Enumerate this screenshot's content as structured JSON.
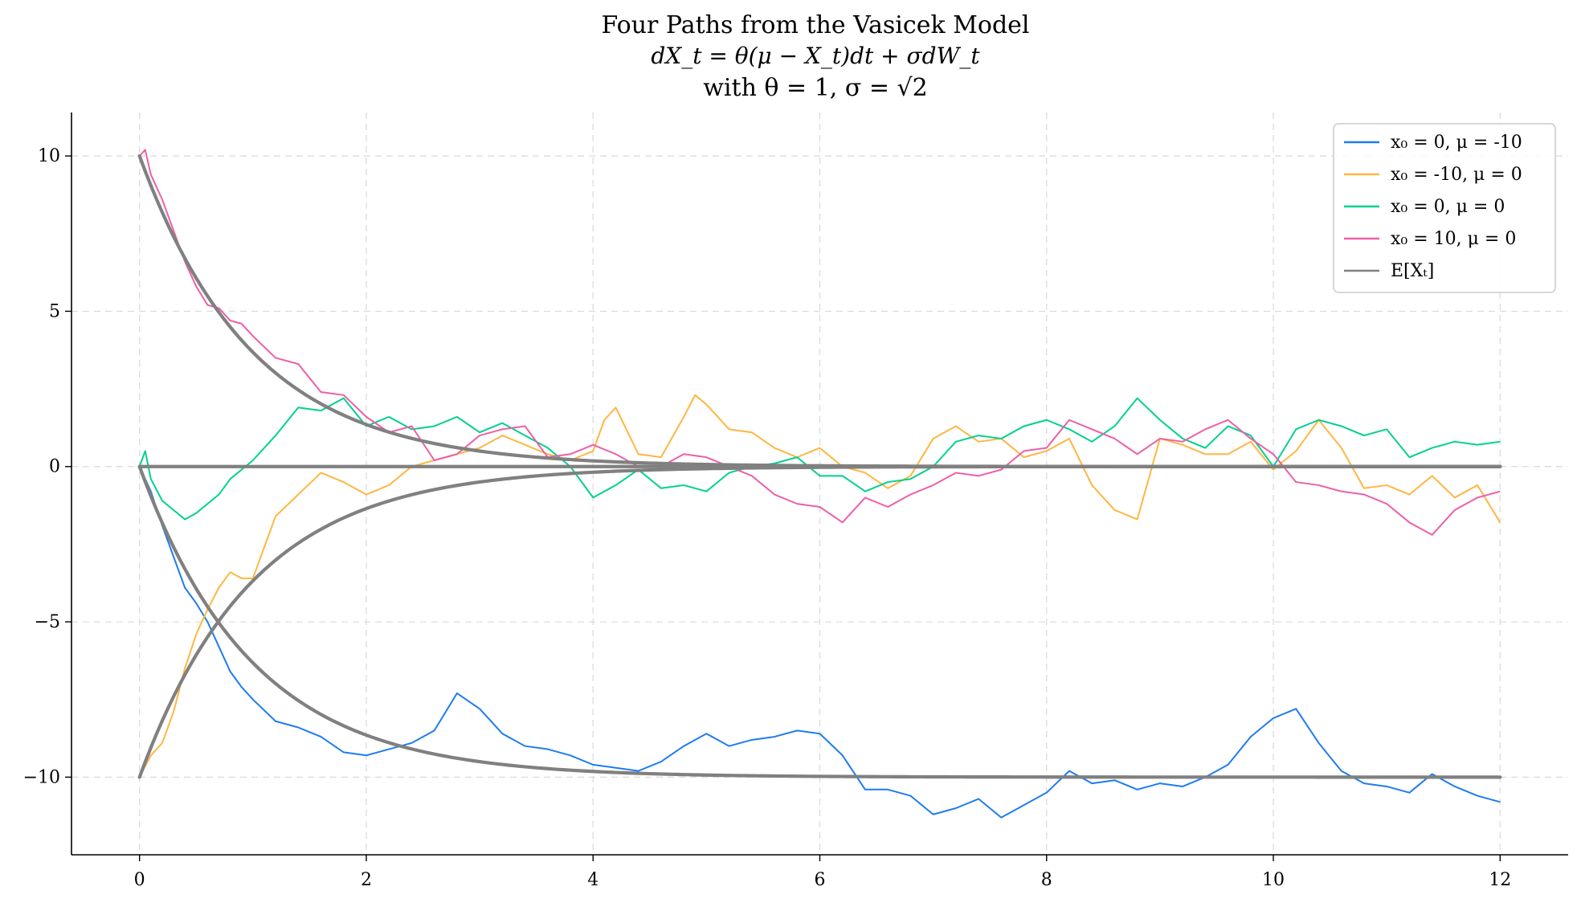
{
  "chart_data": {
    "type": "line",
    "title": "Four Paths from the Vasicek Model",
    "subtitle_equation": "dX_t = θ(μ − X_t)dt + σdW_t",
    "subtitle_params": "with θ = 1, σ = √2",
    "xlabel": "",
    "ylabel": "",
    "xlim": [
      -0.6,
      12.6
    ],
    "ylim": [
      -12.5,
      11.4
    ],
    "grid": true,
    "legend_position": "top-right",
    "x_ticks": [
      0,
      2,
      4,
      6,
      8,
      10,
      12
    ],
    "x_tick_labels": [
      "0",
      "2",
      "4",
      "6",
      "8",
      "10",
      "12"
    ],
    "y_ticks": [
      -10,
      -5,
      0,
      5,
      10
    ],
    "y_tick_labels": [
      "−10",
      "−5",
      "0",
      "5",
      "10"
    ],
    "legend": [
      "x₀ = 0, μ = -10",
      "x₀ = -10, μ = 0",
      "x₀ = 0, μ = 0",
      "x₀ = 10, μ = 0",
      "E[Xₜ]"
    ],
    "series": [
      {
        "name": "x₀ = 0, μ = -10",
        "color": "#1f7cf0",
        "x": [
          0,
          0.1,
          0.2,
          0.3,
          0.4,
          0.5,
          0.6,
          0.7,
          0.8,
          0.9,
          1.0,
          1.2,
          1.4,
          1.6,
          1.8,
          2.0,
          2.2,
          2.4,
          2.6,
          2.8,
          3.0,
          3.2,
          3.4,
          3.6,
          3.8,
          4.0,
          4.2,
          4.4,
          4.6,
          4.8,
          5.0,
          5.2,
          5.4,
          5.6,
          5.8,
          6.0,
          6.2,
          6.4,
          6.6,
          6.8,
          7.0,
          7.2,
          7.4,
          7.6,
          7.8,
          8.0,
          8.2,
          8.4,
          8.6,
          8.8,
          9.0,
          9.2,
          9.4,
          9.6,
          9.8,
          10.0,
          10.2,
          10.4,
          10.6,
          10.8,
          11.0,
          11.2,
          11.4,
          11.6,
          11.8,
          12.0
        ],
        "y": [
          0,
          -0.8,
          -1.9,
          -2.9,
          -3.9,
          -4.4,
          -5.0,
          -5.8,
          -6.6,
          -7.1,
          -7.5,
          -8.2,
          -8.4,
          -8.7,
          -9.2,
          -9.3,
          -9.1,
          -8.9,
          -8.5,
          -7.3,
          -7.8,
          -8.6,
          -9.0,
          -9.1,
          -9.3,
          -9.6,
          -9.7,
          -9.8,
          -9.5,
          -9.0,
          -8.6,
          -9.0,
          -8.8,
          -8.7,
          -8.5,
          -8.6,
          -9.3,
          -10.4,
          -10.4,
          -10.6,
          -11.2,
          -11.0,
          -10.7,
          -11.3,
          -10.9,
          -10.5,
          -9.8,
          -10.2,
          -10.1,
          -10.4,
          -10.2,
          -10.3,
          -10.0,
          -9.6,
          -8.7,
          -8.1,
          -7.8,
          -8.9,
          -9.8,
          -10.2,
          -10.3,
          -10.5,
          -9.9,
          -10.3,
          -10.6,
          -10.8
        ]
      },
      {
        "name": "x₀ = -10, μ = 0",
        "color": "#ffb642",
        "x": [
          0,
          0.1,
          0.2,
          0.3,
          0.4,
          0.5,
          0.6,
          0.7,
          0.8,
          0.9,
          1.0,
          1.2,
          1.4,
          1.6,
          1.8,
          2.0,
          2.2,
          2.4,
          2.6,
          2.8,
          3.0,
          3.2,
          3.4,
          3.6,
          3.8,
          4.0,
          4.1,
          4.2,
          4.4,
          4.6,
          4.8,
          4.9,
          5.0,
          5.2,
          5.4,
          5.6,
          5.8,
          6.0,
          6.2,
          6.4,
          6.6,
          6.8,
          7.0,
          7.2,
          7.4,
          7.6,
          7.8,
          8.0,
          8.2,
          8.4,
          8.6,
          8.8,
          9.0,
          9.2,
          9.4,
          9.6,
          9.8,
          10.0,
          10.2,
          10.4,
          10.6,
          10.8,
          11.0,
          11.2,
          11.4,
          11.6,
          11.8,
          12.0
        ],
        "y": [
          -10,
          -9.3,
          -8.9,
          -7.9,
          -6.5,
          -5.4,
          -4.6,
          -3.9,
          -3.4,
          -3.6,
          -3.6,
          -1.6,
          -0.9,
          -0.2,
          -0.5,
          -0.9,
          -0.6,
          0.0,
          0.2,
          0.4,
          0.6,
          1.0,
          0.7,
          0.4,
          0.2,
          0.5,
          1.5,
          1.9,
          0.4,
          0.3,
          1.6,
          2.3,
          2.0,
          1.2,
          1.1,
          0.6,
          0.3,
          0.6,
          0.0,
          -0.2,
          -0.7,
          -0.3,
          0.9,
          1.3,
          0.8,
          0.9,
          0.3,
          0.5,
          0.9,
          -0.6,
          -1.4,
          -1.7,
          0.9,
          0.7,
          0.4,
          0.4,
          0.8,
          -0.1,
          0.5,
          1.5,
          0.6,
          -0.7,
          -0.6,
          -0.9,
          -0.3,
          -1.0,
          -0.6,
          -1.8
        ]
      },
      {
        "name": "x₀ = 0, μ = 0",
        "color": "#00d18f",
        "x": [
          0,
          0.05,
          0.1,
          0.2,
          0.3,
          0.4,
          0.5,
          0.6,
          0.7,
          0.8,
          0.9,
          1.0,
          1.2,
          1.4,
          1.6,
          1.8,
          2.0,
          2.2,
          2.4,
          2.6,
          2.8,
          3.0,
          3.2,
          3.4,
          3.6,
          3.8,
          4.0,
          4.2,
          4.4,
          4.6,
          4.8,
          5.0,
          5.2,
          5.4,
          5.6,
          5.8,
          6.0,
          6.2,
          6.4,
          6.6,
          6.8,
          7.0,
          7.2,
          7.4,
          7.6,
          7.8,
          8.0,
          8.2,
          8.4,
          8.6,
          8.8,
          9.0,
          9.2,
          9.4,
          9.6,
          9.8,
          10.0,
          10.2,
          10.4,
          10.6,
          10.8,
          11.0,
          11.2,
          11.4,
          11.6,
          11.8,
          12.0
        ],
        "y": [
          0,
          0.5,
          -0.4,
          -1.1,
          -1.4,
          -1.7,
          -1.5,
          -1.2,
          -0.9,
          -0.4,
          -0.1,
          0.2,
          1.0,
          1.9,
          1.8,
          2.2,
          1.3,
          1.6,
          1.2,
          1.3,
          1.6,
          1.1,
          1.4,
          1.0,
          0.6,
          0.0,
          -1.0,
          -0.6,
          -0.1,
          -0.7,
          -0.6,
          -0.8,
          -0.2,
          0.0,
          0.1,
          0.3,
          -0.3,
          -0.3,
          -0.8,
          -0.5,
          -0.4,
          0.0,
          0.8,
          1.0,
          0.9,
          1.3,
          1.5,
          1.2,
          0.8,
          1.3,
          2.2,
          1.5,
          0.9,
          0.6,
          1.3,
          1.0,
          0.0,
          1.2,
          1.5,
          1.3,
          1.0,
          1.2,
          0.3,
          0.6,
          0.8,
          0.7,
          0.8
        ]
      },
      {
        "name": "x₀ = 10, μ = 0",
        "color": "#ee5fa7",
        "x": [
          0,
          0.05,
          0.1,
          0.2,
          0.3,
          0.4,
          0.5,
          0.6,
          0.7,
          0.8,
          0.9,
          1.0,
          1.2,
          1.4,
          1.6,
          1.8,
          2.0,
          2.2,
          2.4,
          2.6,
          2.8,
          3.0,
          3.2,
          3.4,
          3.6,
          3.8,
          4.0,
          4.2,
          4.4,
          4.6,
          4.8,
          5.0,
          5.2,
          5.4,
          5.6,
          5.8,
          6.0,
          6.2,
          6.4,
          6.6,
          6.8,
          7.0,
          7.2,
          7.4,
          7.6,
          7.8,
          8.0,
          8.2,
          8.4,
          8.6,
          8.8,
          9.0,
          9.2,
          9.4,
          9.6,
          9.8,
          10.0,
          10.2,
          10.4,
          10.6,
          10.8,
          11.0,
          11.2,
          11.4,
          11.6,
          11.8,
          12.0
        ],
        "y": [
          10,
          10.2,
          9.4,
          8.6,
          7.6,
          6.6,
          5.8,
          5.2,
          5.1,
          4.7,
          4.6,
          4.2,
          3.5,
          3.3,
          2.4,
          2.3,
          1.6,
          1.1,
          1.3,
          0.2,
          0.4,
          1.0,
          1.2,
          1.3,
          0.3,
          0.4,
          0.7,
          0.4,
          0.0,
          0.0,
          0.4,
          0.3,
          0.0,
          -0.3,
          -0.9,
          -1.2,
          -1.3,
          -1.8,
          -1.0,
          -1.3,
          -0.9,
          -0.6,
          -0.2,
          -0.3,
          -0.1,
          0.5,
          0.6,
          1.5,
          1.2,
          0.9,
          0.4,
          0.9,
          0.8,
          1.2,
          1.5,
          0.9,
          0.4,
          -0.5,
          -0.6,
          -0.8,
          -0.9,
          -1.2,
          -1.8,
          -2.2,
          -1.4,
          -1.0,
          -0.8
        ]
      },
      {
        "name": "E[Xₜ]",
        "color": "#808080",
        "kind": "expectation",
        "curves": [
          {
            "x0": 0,
            "mu": -10
          },
          {
            "x0": -10,
            "mu": 0
          },
          {
            "x0": 0,
            "mu": 0
          },
          {
            "x0": 10,
            "mu": 0
          }
        ],
        "theta": 1,
        "t_max": 12
      }
    ]
  }
}
